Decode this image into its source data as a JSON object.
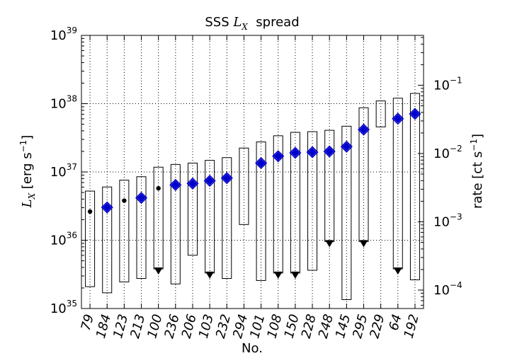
{
  "chart_data": {
    "type": "box-range",
    "title": {
      "prefix": "SSS ",
      "symbol": "L",
      "sub": "X",
      "suffix": "  spread"
    },
    "xlabel": "No.",
    "ylabel_left": {
      "symbol": "L",
      "sub": "X",
      "units": " [erg s",
      "exp": "−1",
      "close": "]"
    },
    "ylabel_right": {
      "pre": "rate [ct s",
      "exp": "−1",
      "close": "]"
    },
    "y_left": {
      "scale": "log",
      "min_exp": 35,
      "max_exp": 39,
      "ticks": [
        {
          "exp": 35,
          "label": "10",
          "sup": "35"
        },
        {
          "exp": 36,
          "label": "10",
          "sup": "36"
        },
        {
          "exp": 37,
          "label": "10",
          "sup": "37"
        },
        {
          "exp": 38,
          "label": "10",
          "sup": "38"
        },
        {
          "exp": 39,
          "label": "10",
          "sup": "39"
        }
      ]
    },
    "y_right": {
      "scale": "log",
      "ticks": [
        {
          "exp": -4,
          "label": "10",
          "sup": "−4",
          "at_left": 35.27
        },
        {
          "exp": -3,
          "label": "10",
          "sup": "−3",
          "at_left": 36.27
        },
        {
          "exp": -2,
          "label": "10",
          "sup": "−2",
          "at_left": 37.27
        },
        {
          "exp": -1,
          "label": "10",
          "sup": "−1",
          "at_left": 38.27
        }
      ]
    },
    "grid": "dotted",
    "legend": "none",
    "colors": {
      "diamond": "#0000cc",
      "box": "#000000"
    },
    "sources": [
      {
        "id": "79",
        "lo": 35.32,
        "hi": 36.72,
        "marker": "dot",
        "val": 36.42,
        "upper_limit": null
      },
      {
        "id": "184",
        "lo": 35.23,
        "hi": 36.78,
        "marker": "diamond",
        "val": 36.48,
        "upper_limit": null
      },
      {
        "id": "123",
        "lo": 35.39,
        "hi": 36.88,
        "marker": "dot",
        "val": 36.58,
        "upper_limit": null
      },
      {
        "id": "213",
        "lo": 35.44,
        "hi": 36.93,
        "marker": "diamond",
        "val": 36.62,
        "upper_limit": null
      },
      {
        "id": "100",
        "lo": 35.58,
        "hi": 37.07,
        "marker": "dot",
        "val": 36.76,
        "upper_limit": 35.58
      },
      {
        "id": "236",
        "lo": 35.36,
        "hi": 37.11,
        "marker": "diamond",
        "val": 36.81,
        "upper_limit": null
      },
      {
        "id": "206",
        "lo": 35.78,
        "hi": 37.13,
        "marker": "diamond",
        "val": 36.83,
        "upper_limit": null
      },
      {
        "id": "103",
        "lo": 35.52,
        "hi": 37.17,
        "marker": "diamond",
        "val": 36.87,
        "upper_limit": 35.52
      },
      {
        "id": "232",
        "lo": 35.44,
        "hi": 37.21,
        "marker": "diamond",
        "val": 36.91,
        "upper_limit": null
      },
      {
        "id": "294",
        "lo": 36.23,
        "hi": 37.35,
        "marker": "none",
        "val": null,
        "upper_limit": null
      },
      {
        "id": "101",
        "lo": 35.41,
        "hi": 37.44,
        "marker": "diamond",
        "val": 37.13,
        "upper_limit": null
      },
      {
        "id": "108",
        "lo": 35.52,
        "hi": 37.53,
        "marker": "diamond",
        "val": 37.23,
        "upper_limit": 35.52
      },
      {
        "id": "150",
        "lo": 35.52,
        "hi": 37.58,
        "marker": "diamond",
        "val": 37.28,
        "upper_limit": 35.52
      },
      {
        "id": "228",
        "lo": 35.56,
        "hi": 37.59,
        "marker": "diamond",
        "val": 37.29,
        "upper_limit": null
      },
      {
        "id": "248",
        "lo": 35.98,
        "hi": 37.61,
        "marker": "diamond",
        "val": 37.3,
        "upper_limit": 35.98
      },
      {
        "id": "145",
        "lo": 35.13,
        "hi": 37.67,
        "marker": "diamond",
        "val": 37.37,
        "upper_limit": null
      },
      {
        "id": "295",
        "lo": 35.98,
        "hi": 37.94,
        "marker": "diamond",
        "val": 37.62,
        "upper_limit": 35.98
      },
      {
        "id": "229",
        "lo": 37.66,
        "hi": 38.04,
        "marker": "none",
        "val": null,
        "upper_limit": null
      },
      {
        "id": "64",
        "lo": 35.58,
        "hi": 38.08,
        "marker": "diamond",
        "val": 37.78,
        "upper_limit": 35.58
      },
      {
        "id": "192",
        "lo": 35.42,
        "hi": 38.15,
        "marker": "diamond",
        "val": 37.85,
        "upper_limit": null
      }
    ]
  }
}
